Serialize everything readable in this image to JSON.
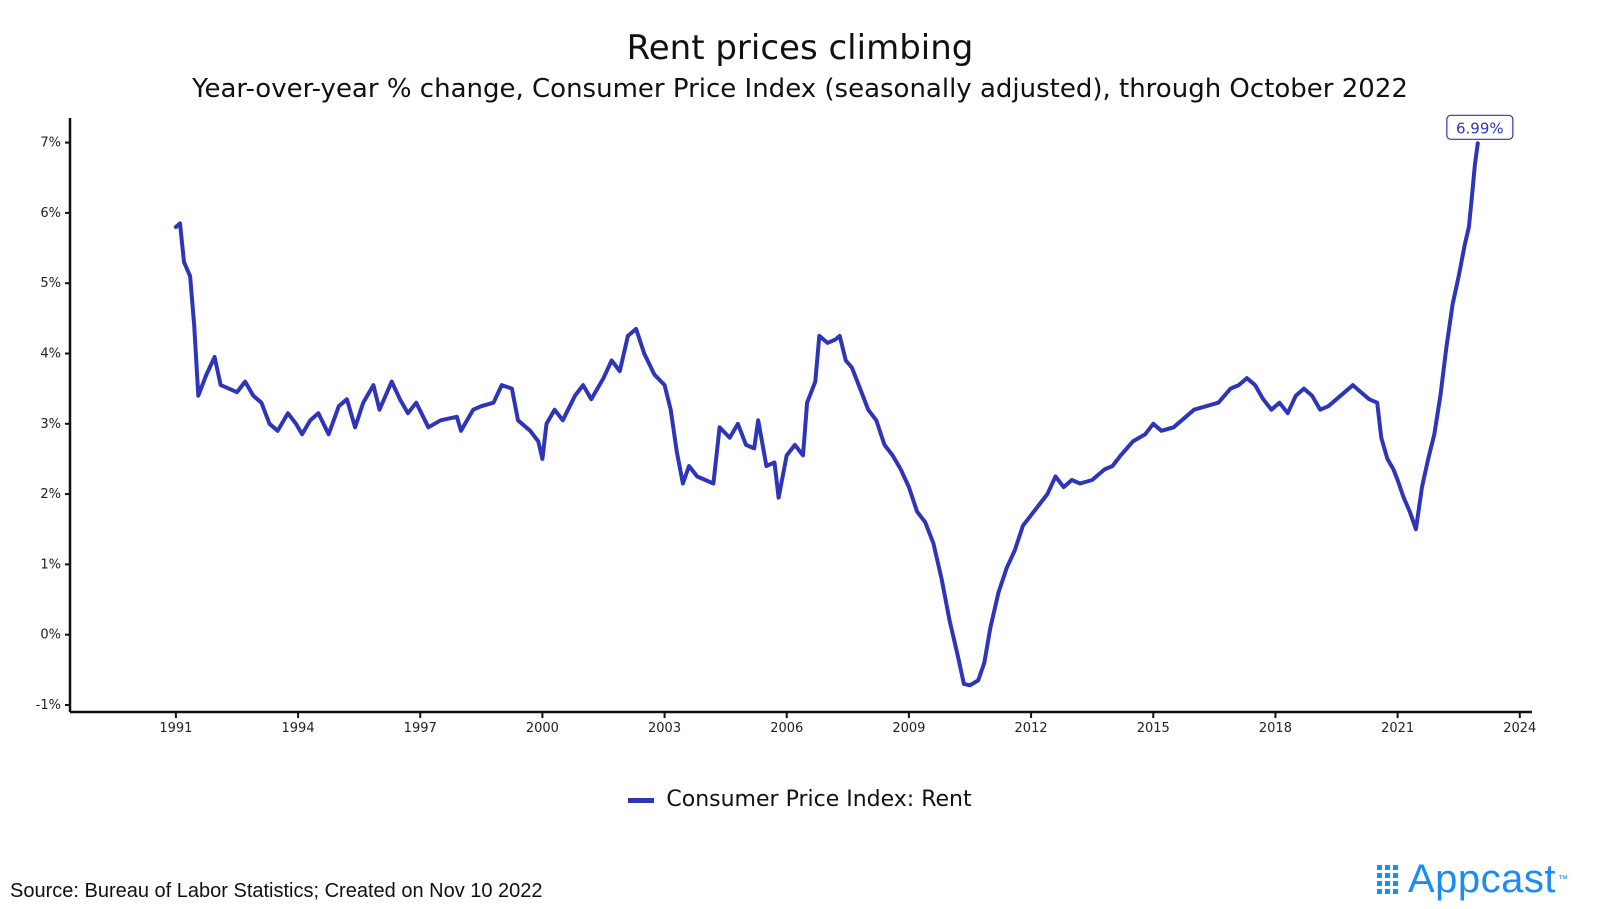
{
  "title": "Rent prices climbing",
  "subtitle": "Year-over-year % change, Consumer Price Index (seasonally adjusted), through October 2022",
  "legend_label": "Consumer Price Index: Rent",
  "source": "Source: Bureau of Labor Statistics; Created on Nov 10 2022",
  "logo_text": "Appcast",
  "logo_tm": "™",
  "colors": {
    "series": "#2f35b9",
    "logo": "#1b8cf0",
    "axis": "#111111"
  },
  "chart_data": {
    "type": "line",
    "title": "Rent prices climbing",
    "subtitle": "Year-over-year % change, Consumer Price Index (seasonally adjusted), through October 2022",
    "xlabel": "",
    "ylabel": "",
    "xlim": [
      1988.4,
      2024.3
    ],
    "ylim": [
      -1.1,
      7.35
    ],
    "x_ticks": [
      1991,
      1994,
      1997,
      2000,
      2003,
      2006,
      2009,
      2012,
      2015,
      2018,
      2021,
      2024
    ],
    "y_ticks": [
      -1,
      0,
      1,
      2,
      3,
      4,
      5,
      6,
      7
    ],
    "y_tick_labels": [
      "-1%",
      "0%",
      "1%",
      "2%",
      "3%",
      "4%",
      "5%",
      "6%",
      "7%"
    ],
    "grid": false,
    "legend_position": "bottom",
    "end_label": "6.99%",
    "series": [
      {
        "name": "Consumer Price Index: Rent",
        "points": [
          [
            1991.0,
            5.8
          ],
          [
            1991.1,
            5.85
          ],
          [
            1991.2,
            5.3
          ],
          [
            1991.35,
            5.1
          ],
          [
            1991.45,
            4.4
          ],
          [
            1991.55,
            3.4
          ],
          [
            1991.75,
            3.7
          ],
          [
            1991.95,
            3.95
          ],
          [
            1992.1,
            3.55
          ],
          [
            1992.3,
            3.5
          ],
          [
            1992.5,
            3.45
          ],
          [
            1992.7,
            3.6
          ],
          [
            1992.9,
            3.4
          ],
          [
            1993.1,
            3.3
          ],
          [
            1993.3,
            3.0
          ],
          [
            1993.5,
            2.9
          ],
          [
            1993.75,
            3.15
          ],
          [
            1993.95,
            3.0
          ],
          [
            1994.1,
            2.85
          ],
          [
            1994.3,
            3.05
          ],
          [
            1994.5,
            3.15
          ],
          [
            1994.75,
            2.85
          ],
          [
            1995.0,
            3.25
          ],
          [
            1995.2,
            3.35
          ],
          [
            1995.4,
            2.95
          ],
          [
            1995.6,
            3.3
          ],
          [
            1995.85,
            3.55
          ],
          [
            1996.0,
            3.2
          ],
          [
            1996.3,
            3.6
          ],
          [
            1996.5,
            3.35
          ],
          [
            1996.7,
            3.15
          ],
          [
            1996.9,
            3.3
          ],
          [
            1997.2,
            2.95
          ],
          [
            1997.5,
            3.05
          ],
          [
            1997.9,
            3.1
          ],
          [
            1998.0,
            2.9
          ],
          [
            1998.3,
            3.2
          ],
          [
            1998.5,
            3.25
          ],
          [
            1998.8,
            3.3
          ],
          [
            1999.0,
            3.55
          ],
          [
            1999.25,
            3.5
          ],
          [
            1999.4,
            3.05
          ],
          [
            1999.7,
            2.9
          ],
          [
            1999.9,
            2.75
          ],
          [
            2000.0,
            2.5
          ],
          [
            2000.1,
            3.0
          ],
          [
            2000.3,
            3.2
          ],
          [
            2000.5,
            3.05
          ],
          [
            2000.8,
            3.4
          ],
          [
            2001.0,
            3.55
          ],
          [
            2001.2,
            3.35
          ],
          [
            2001.5,
            3.65
          ],
          [
            2001.7,
            3.9
          ],
          [
            2001.9,
            3.75
          ],
          [
            2002.1,
            4.25
          ],
          [
            2002.3,
            4.35
          ],
          [
            2002.5,
            4.0
          ],
          [
            2002.75,
            3.7
          ],
          [
            2003.0,
            3.55
          ],
          [
            2003.15,
            3.2
          ],
          [
            2003.3,
            2.6
          ],
          [
            2003.45,
            2.15
          ],
          [
            2003.6,
            2.4
          ],
          [
            2003.8,
            2.25
          ],
          [
            2004.0,
            2.2
          ],
          [
            2004.2,
            2.15
          ],
          [
            2004.35,
            2.95
          ],
          [
            2004.6,
            2.8
          ],
          [
            2004.8,
            3.0
          ],
          [
            2005.0,
            2.7
          ],
          [
            2005.2,
            2.65
          ],
          [
            2005.3,
            3.05
          ],
          [
            2005.5,
            2.4
          ],
          [
            2005.7,
            2.45
          ],
          [
            2005.8,
            1.95
          ],
          [
            2006.0,
            2.55
          ],
          [
            2006.2,
            2.7
          ],
          [
            2006.4,
            2.55
          ],
          [
            2006.5,
            3.3
          ],
          [
            2006.7,
            3.6
          ],
          [
            2006.8,
            4.25
          ],
          [
            2007.0,
            4.15
          ],
          [
            2007.2,
            4.2
          ],
          [
            2007.3,
            4.25
          ],
          [
            2007.45,
            3.9
          ],
          [
            2007.6,
            3.8
          ],
          [
            2007.8,
            3.5
          ],
          [
            2008.0,
            3.2
          ],
          [
            2008.2,
            3.05
          ],
          [
            2008.4,
            2.7
          ],
          [
            2008.6,
            2.55
          ],
          [
            2008.8,
            2.35
          ],
          [
            2009.0,
            2.1
          ],
          [
            2009.2,
            1.75
          ],
          [
            2009.4,
            1.6
          ],
          [
            2009.6,
            1.3
          ],
          [
            2009.8,
            0.8
          ],
          [
            2010.0,
            0.2
          ],
          [
            2010.2,
            -0.3
          ],
          [
            2010.35,
            -0.7
          ],
          [
            2010.5,
            -0.72
          ],
          [
            2010.7,
            -0.65
          ],
          [
            2010.85,
            -0.4
          ],
          [
            2011.0,
            0.1
          ],
          [
            2011.2,
            0.6
          ],
          [
            2011.4,
            0.95
          ],
          [
            2011.6,
            1.2
          ],
          [
            2011.8,
            1.55
          ],
          [
            2012.0,
            1.7
          ],
          [
            2012.2,
            1.85
          ],
          [
            2012.4,
            2.0
          ],
          [
            2012.6,
            2.25
          ],
          [
            2012.8,
            2.1
          ],
          [
            2013.0,
            2.2
          ],
          [
            2013.2,
            2.15
          ],
          [
            2013.5,
            2.2
          ],
          [
            2013.8,
            2.35
          ],
          [
            2014.0,
            2.4
          ],
          [
            2014.2,
            2.55
          ],
          [
            2014.5,
            2.75
          ],
          [
            2014.8,
            2.85
          ],
          [
            2015.0,
            3.0
          ],
          [
            2015.2,
            2.9
          ],
          [
            2015.5,
            2.95
          ],
          [
            2015.8,
            3.1
          ],
          [
            2016.0,
            3.2
          ],
          [
            2016.3,
            3.25
          ],
          [
            2016.6,
            3.3
          ],
          [
            2016.9,
            3.5
          ],
          [
            2017.1,
            3.55
          ],
          [
            2017.3,
            3.65
          ],
          [
            2017.5,
            3.55
          ],
          [
            2017.7,
            3.35
          ],
          [
            2017.9,
            3.2
          ],
          [
            2018.1,
            3.3
          ],
          [
            2018.3,
            3.15
          ],
          [
            2018.5,
            3.4
          ],
          [
            2018.7,
            3.5
          ],
          [
            2018.9,
            3.4
          ],
          [
            2019.1,
            3.2
          ],
          [
            2019.3,
            3.25
          ],
          [
            2019.5,
            3.35
          ],
          [
            2019.7,
            3.45
          ],
          [
            2019.9,
            3.55
          ],
          [
            2020.1,
            3.45
          ],
          [
            2020.3,
            3.35
          ],
          [
            2020.5,
            3.3
          ],
          [
            2020.6,
            2.8
          ],
          [
            2020.75,
            2.5
          ],
          [
            2020.9,
            2.35
          ],
          [
            2021.0,
            2.2
          ],
          [
            2021.15,
            1.95
          ],
          [
            2021.3,
            1.75
          ],
          [
            2021.45,
            1.5
          ],
          [
            2021.6,
            2.1
          ],
          [
            2021.75,
            2.5
          ],
          [
            2021.9,
            2.85
          ],
          [
            2022.05,
            3.4
          ],
          [
            2022.2,
            4.1
          ],
          [
            2022.35,
            4.7
          ],
          [
            2022.5,
            5.1
          ],
          [
            2022.65,
            5.55
          ],
          [
            2022.75,
            5.8
          ],
          [
            2022.82,
            6.2
          ],
          [
            2022.9,
            6.7
          ],
          [
            2022.97,
            6.99
          ]
        ]
      }
    ]
  }
}
